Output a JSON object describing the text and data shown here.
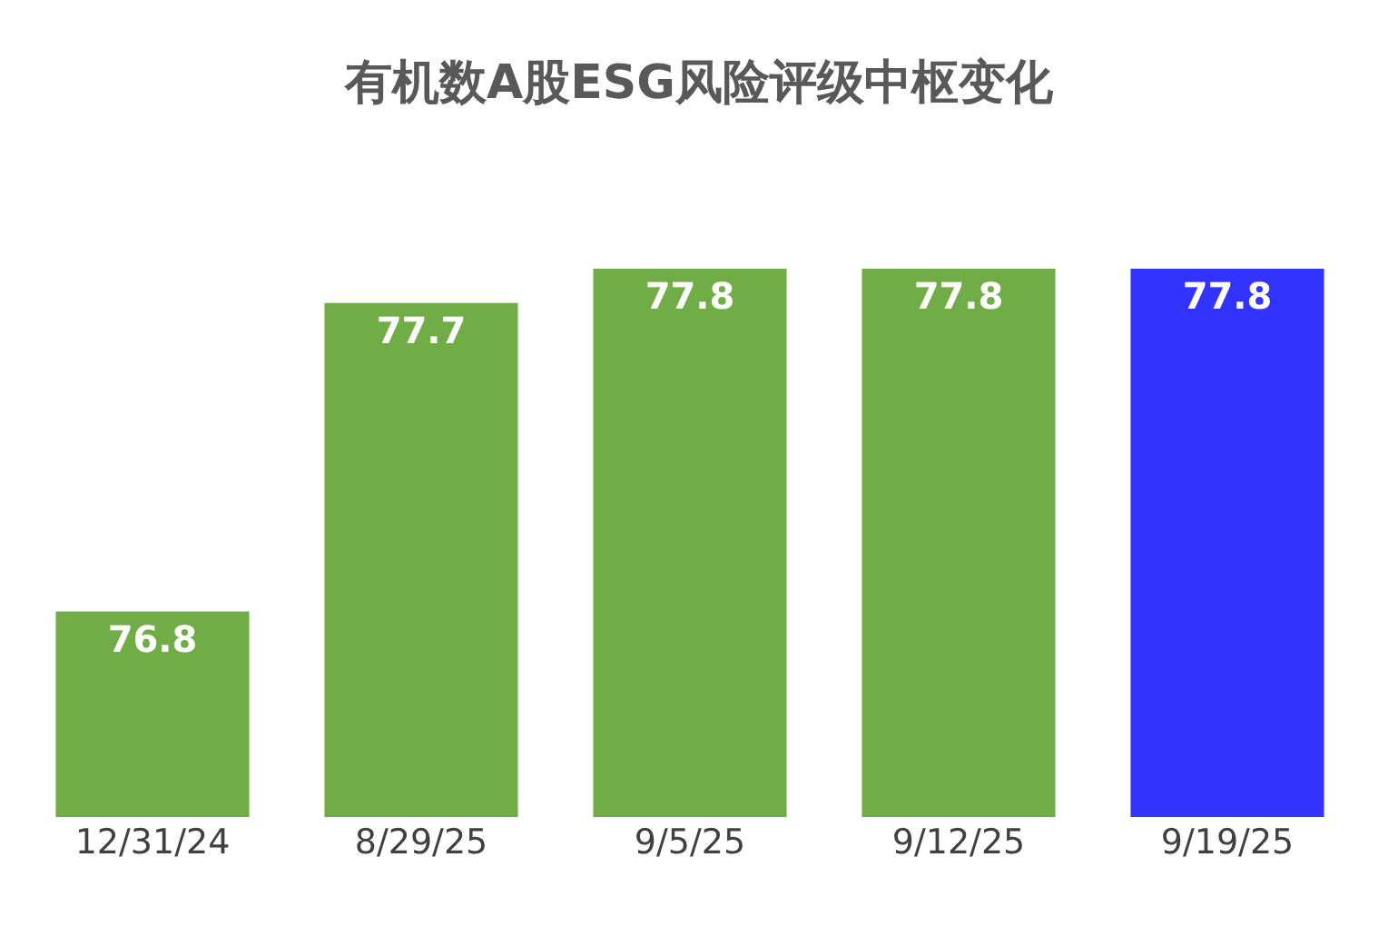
{
  "chart_data": {
    "type": "bar",
    "title": "有机数A股ESG风险评级中枢变化",
    "categories": [
      "12/31/24",
      "8/29/25",
      "9/5/25",
      "9/12/25",
      "9/19/25"
    ],
    "values": [
      76.8,
      77.7,
      77.8,
      77.8,
      77.8
    ],
    "colors": [
      "#70ad47",
      "#70ad47",
      "#70ad47",
      "#70ad47",
      "#3333ff"
    ],
    "ylim": [
      76.2,
      77.8
    ],
    "data_labels": true,
    "legend": false,
    "tick_labels": "x"
  }
}
